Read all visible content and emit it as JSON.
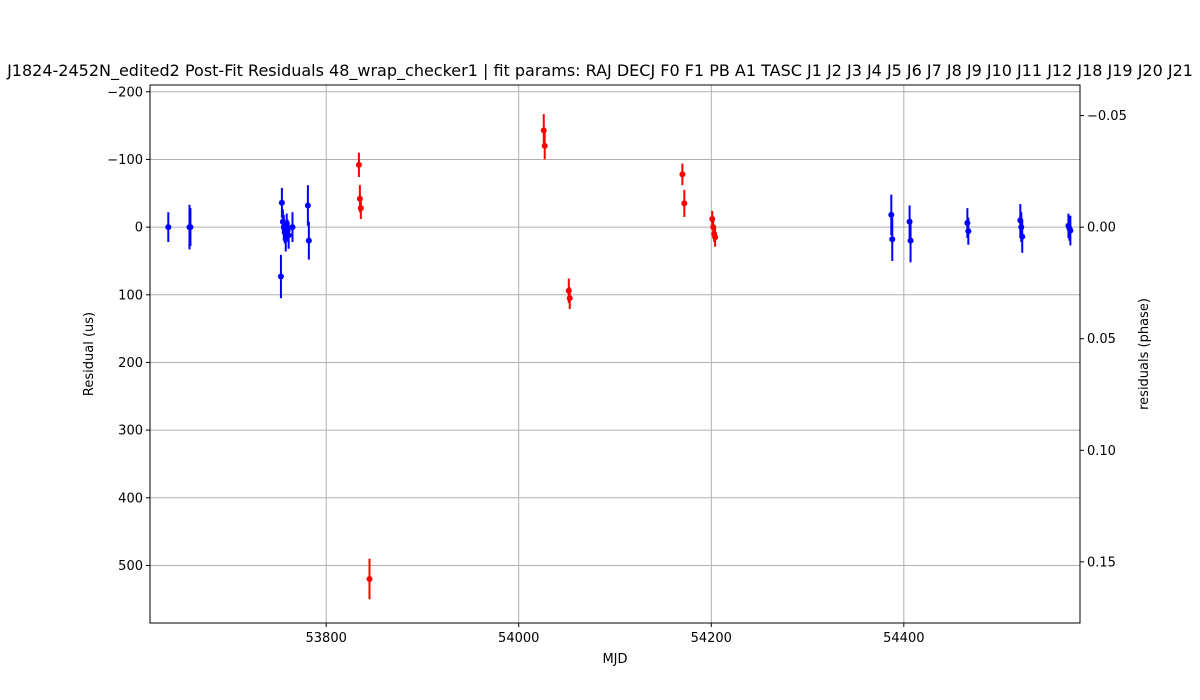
{
  "chart_data": {
    "type": "scatter",
    "title": "J1824-2452N_edited2 Post-Fit Residuals 48_wrap_checker1 | fit params: RAJ DECJ F0 F1 PB A1 TASC J1 J2 J3 J4 J5 J6 J7 J8 J9 J10 J11 J12 J18 J19 J20 J21",
    "xlabel": "MJD",
    "ylabel": "Residual (us)",
    "ylabel_right": "residuals (phase)",
    "xlim": [
      53617,
      54583
    ],
    "ylim": [
      -210,
      585
    ],
    "y_inverted": true,
    "ylim_right": [
      -0.0637,
      0.1774
    ],
    "grid": true,
    "x_ticks": [
      53800,
      54000,
      54200,
      54400
    ],
    "y_ticks": [
      -200,
      -100,
      0,
      100,
      200,
      300,
      400,
      500
    ],
    "y_ticks_right": [
      -0.05,
      0.0,
      0.05,
      0.1,
      0.15
    ],
    "x_tick_labels": [
      "53800",
      "54000",
      "54200",
      "54400"
    ],
    "y_tick_labels": [
      "−200",
      "−100",
      "0",
      "100",
      "200",
      "300",
      "400",
      "500"
    ],
    "y_tick_labels_right": [
      "−0.05",
      "0.00",
      "0.05",
      "0.10",
      "0.15"
    ],
    "colors": {
      "blue": "#0000ff",
      "red": "#ff0000"
    },
    "series": [
      {
        "color": "#0000ff",
        "points": [
          {
            "x": 53636,
            "y": 0,
            "err": 22
          },
          {
            "x": 53658,
            "y": 0,
            "err": 33
          },
          {
            "x": 53659,
            "y": 0,
            "err": 28
          },
          {
            "x": 53753,
            "y": 73,
            "err": 32
          },
          {
            "x": 53754,
            "y": -36,
            "err": 22
          },
          {
            "x": 53755,
            "y": -8,
            "err": 18
          },
          {
            "x": 53756,
            "y": 0,
            "err": 18
          },
          {
            "x": 53757,
            "y": 8,
            "err": 16
          },
          {
            "x": 53758,
            "y": 18,
            "err": 18
          },
          {
            "x": 53759,
            "y": -2,
            "err": 18
          },
          {
            "x": 53760,
            "y": 5,
            "err": 16
          },
          {
            "x": 53761,
            "y": 12,
            "err": 20
          },
          {
            "x": 53765,
            "y": 0,
            "err": 22
          },
          {
            "x": 53781,
            "y": -32,
            "err": 30
          },
          {
            "x": 53782,
            "y": 20,
            "err": 28
          },
          {
            "x": 54387,
            "y": -18,
            "err": 30
          },
          {
            "x": 54388,
            "y": 18,
            "err": 32
          },
          {
            "x": 54406,
            "y": -8,
            "err": 24
          },
          {
            "x": 54407,
            "y": 20,
            "err": 32
          },
          {
            "x": 54466,
            "y": -6,
            "err": 22
          },
          {
            "x": 54467,
            "y": 6,
            "err": 20
          },
          {
            "x": 54521,
            "y": -10,
            "err": 24
          },
          {
            "x": 54522,
            "y": 0,
            "err": 22
          },
          {
            "x": 54523,
            "y": 14,
            "err": 24
          },
          {
            "x": 54571,
            "y": -2,
            "err": 18
          },
          {
            "x": 54572,
            "y": 2,
            "err": 18
          },
          {
            "x": 54573,
            "y": 5,
            "err": 22
          }
        ]
      },
      {
        "color": "#ff0000",
        "points": [
          {
            "x": 53834,
            "y": -92,
            "err": 18
          },
          {
            "x": 53835,
            "y": -42,
            "err": 20
          },
          {
            "x": 53836,
            "y": -28,
            "err": 16
          },
          {
            "x": 53845,
            "y": 520,
            "err": 30
          },
          {
            "x": 54026,
            "y": -143,
            "err": 24
          },
          {
            "x": 54027,
            "y": -120,
            "err": 20
          },
          {
            "x": 54052,
            "y": 94,
            "err": 18
          },
          {
            "x": 54053,
            "y": 105,
            "err": 16
          },
          {
            "x": 54170,
            "y": -78,
            "err": 16
          },
          {
            "x": 54172,
            "y": -35,
            "err": 20
          },
          {
            "x": 54201,
            "y": -12,
            "err": 12
          },
          {
            "x": 54202,
            "y": 0,
            "err": 12
          },
          {
            "x": 54203,
            "y": 10,
            "err": 12
          },
          {
            "x": 54204,
            "y": 15,
            "err": 14
          }
        ]
      }
    ]
  }
}
